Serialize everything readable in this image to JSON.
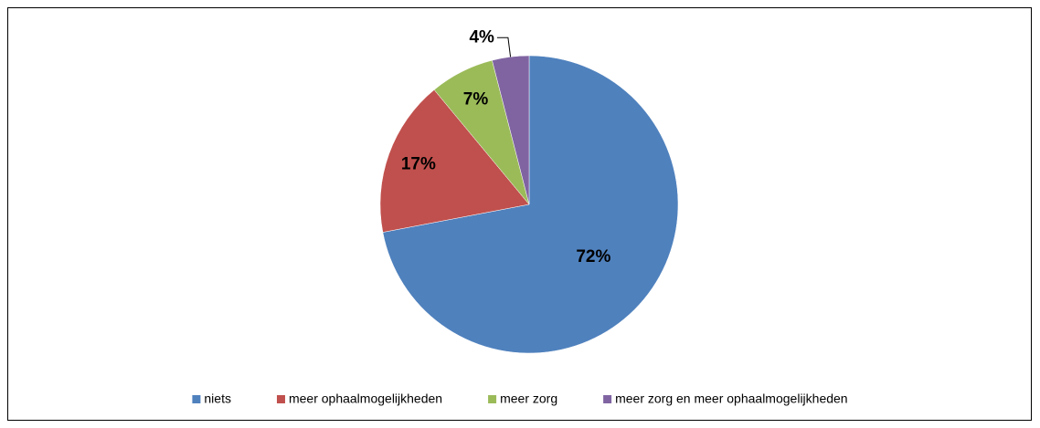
{
  "chart_data": {
    "type": "pie",
    "categories": [
      "niets",
      "meer ophaalmogelijkheden",
      "meer zorg",
      "meer zorg en meer ophaalmogelijkheden"
    ],
    "values": [
      72,
      17,
      7,
      4
    ],
    "value_labels": [
      "72%",
      "17%",
      "7%",
      "4%"
    ],
    "colors": [
      "#4f81bd",
      "#c0504d",
      "#9bbb59",
      "#8064a2"
    ],
    "legend": "bottom"
  }
}
